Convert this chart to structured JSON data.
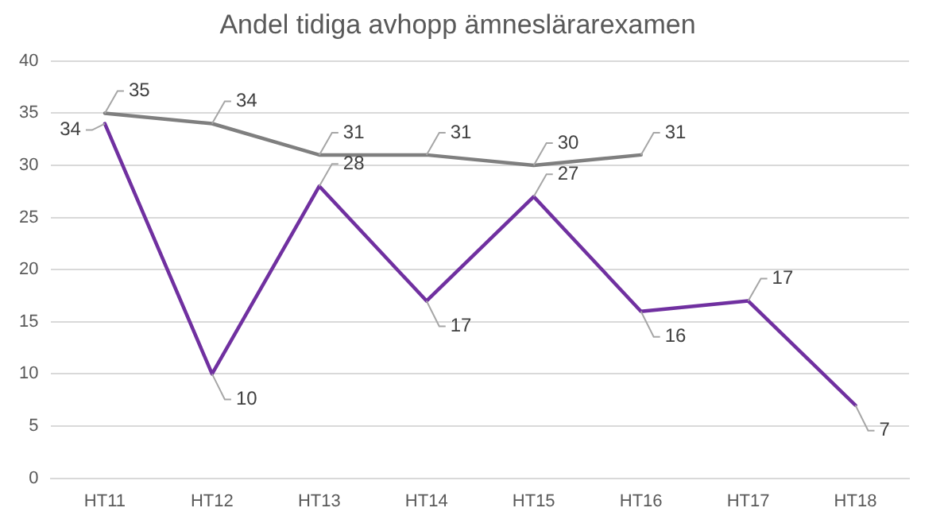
{
  "chart_data": {
    "type": "line",
    "title": "Andel tidiga avhopp ämneslärarexamen",
    "categories": [
      "HT11",
      "HT12",
      "HT13",
      "HT14",
      "HT15",
      "HT16",
      "HT17",
      "HT18"
    ],
    "series": [
      {
        "color": "#7f7f7f",
        "values": [
          35,
          34,
          31,
          31,
          30,
          31,
          null,
          null
        ]
      },
      {
        "color": "#7030a0",
        "values": [
          34,
          10,
          28,
          17,
          27,
          16,
          17,
          7
        ]
      }
    ],
    "ylim": [
      0,
      40
    ],
    "yticks": [
      0,
      5,
      10,
      15,
      20,
      25,
      30,
      35,
      40
    ],
    "grid": "y",
    "legend": false,
    "marker": "none",
    "line_style": "solid",
    "data_labels": true
  }
}
